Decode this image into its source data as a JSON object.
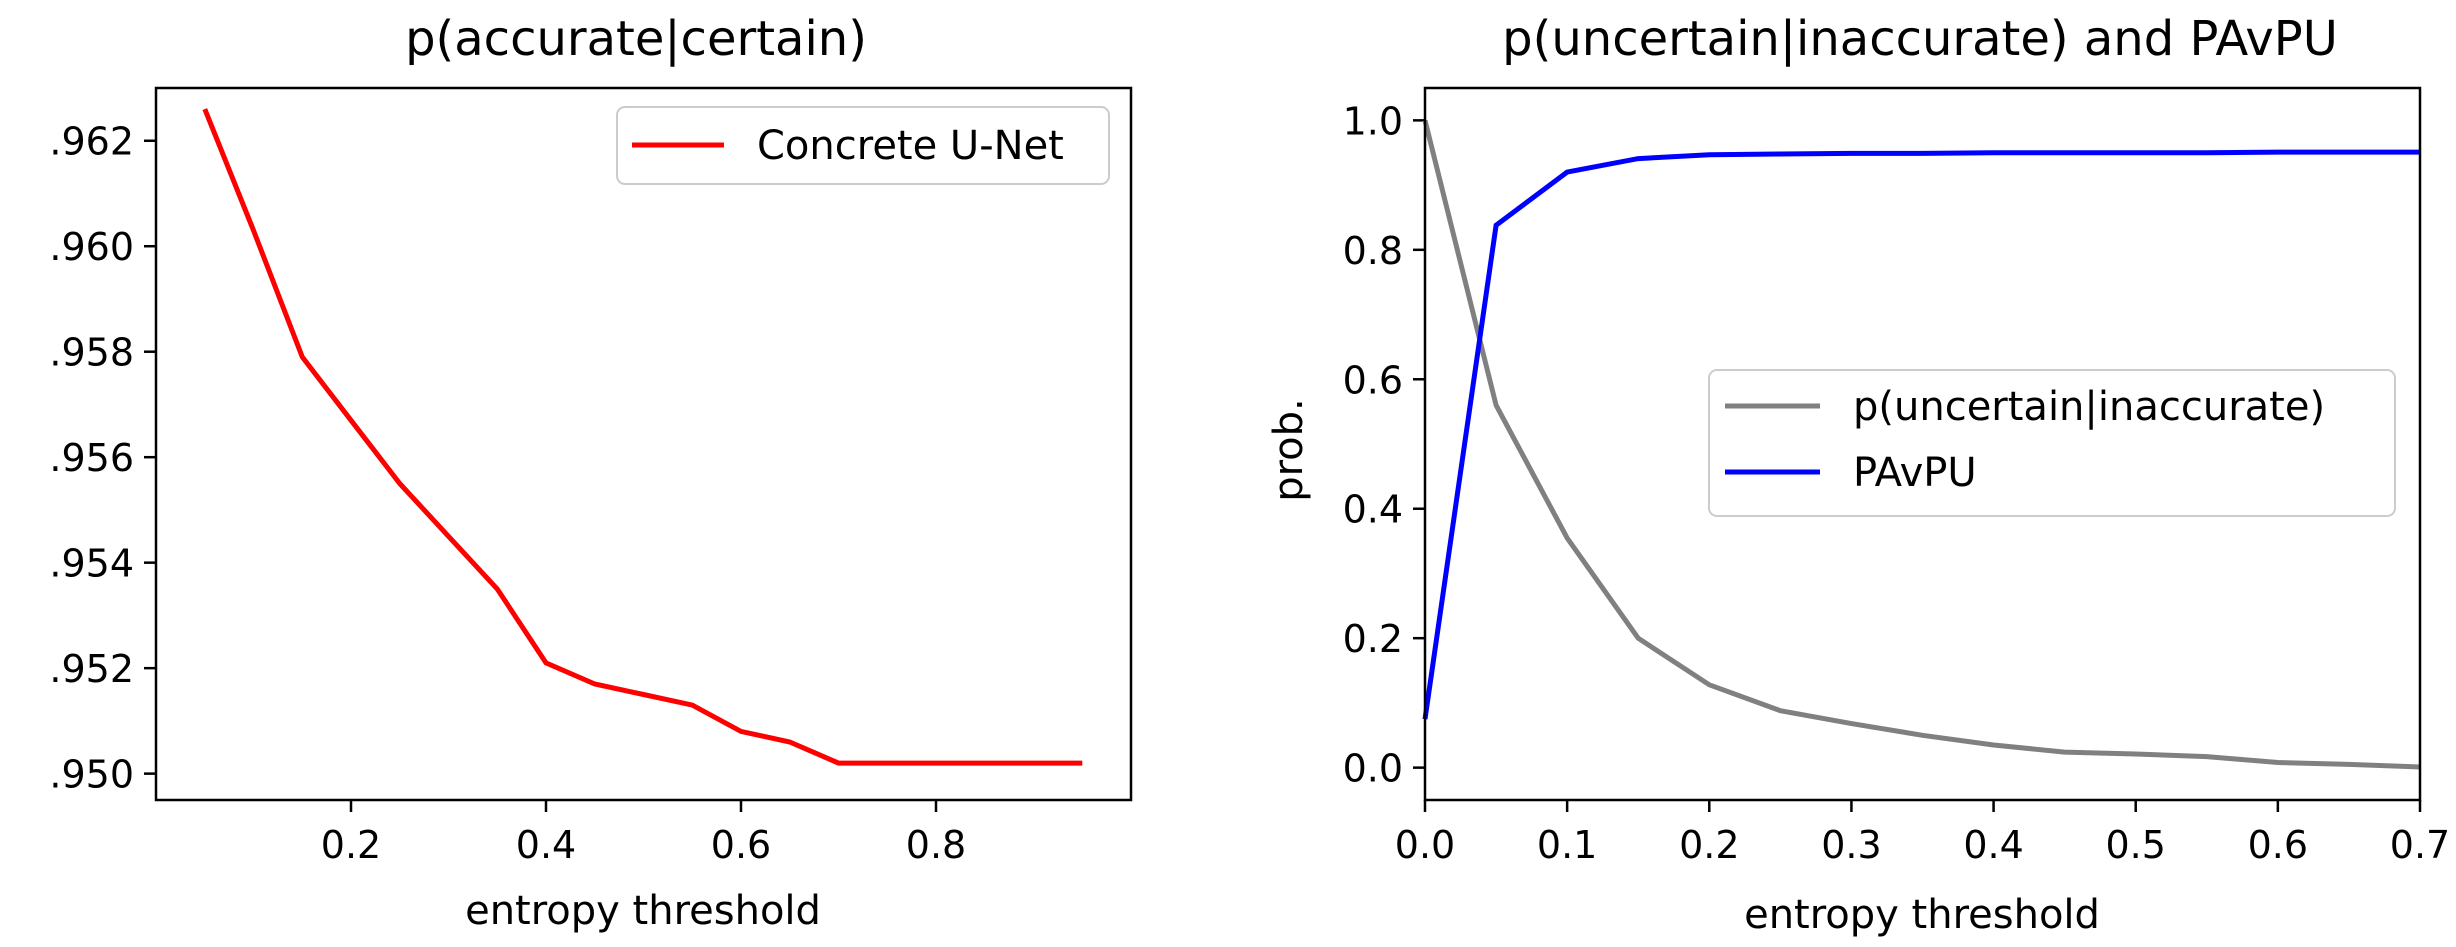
{
  "chart_data": [
    {
      "type": "line",
      "title": "p(accurate|certain)",
      "xlabel": "entropy threshold",
      "ylabel": "",
      "xlim": [
        0.0,
        1.0
      ],
      "ylim": [
        0.9495,
        0.963
      ],
      "xticks": [
        0.2,
        0.4,
        0.6,
        0.8
      ],
      "xtick_labels": [
        "0.2",
        "0.4",
        "0.6",
        "0.8"
      ],
      "yticks": [
        0.95,
        0.952,
        0.954,
        0.956,
        0.958,
        0.96,
        0.962
      ],
      "ytick_labels": [
        ".950",
        ".952",
        ".954",
        ".956",
        ".958",
        ".960",
        ".962"
      ],
      "legend_position": "top-right",
      "grid": false,
      "series": [
        {
          "name": "Concrete U-Net",
          "color": "#ff0000",
          "x": [
            0.05,
            0.1,
            0.15,
            0.2,
            0.25,
            0.3,
            0.35,
            0.4,
            0.45,
            0.5,
            0.55,
            0.6,
            0.65,
            0.7,
            0.75,
            0.8,
            0.85,
            0.9,
            0.95
          ],
          "y": [
            0.9626,
            0.9603,
            0.9579,
            0.9567,
            0.9555,
            0.9545,
            0.9535,
            0.9521,
            0.9517,
            0.9515,
            0.9513,
            0.9508,
            0.9506,
            0.9502,
            0.9502,
            0.9502,
            0.9502,
            0.9502,
            0.9502
          ]
        }
      ]
    },
    {
      "type": "line",
      "title": "p(uncertain|inaccurate) and PAvPU",
      "xlabel": "entropy threshold",
      "ylabel": "prob.",
      "xlim": [
        0.0,
        0.7
      ],
      "ylim": [
        -0.05,
        1.05
      ],
      "xticks": [
        0.0,
        0.1,
        0.2,
        0.3,
        0.4,
        0.5,
        0.6,
        0.7
      ],
      "xtick_labels": [
        "0.0",
        "0.1",
        "0.2",
        "0.3",
        "0.4",
        "0.5",
        "0.6",
        "0.7"
      ],
      "yticks": [
        0.0,
        0.2,
        0.4,
        0.6,
        0.8,
        1.0
      ],
      "ytick_labels": [
        "0.0",
        "0.2",
        "0.4",
        "0.6",
        "0.8",
        "1.0"
      ],
      "legend_position": "center-right",
      "grid": false,
      "series": [
        {
          "name": "p(uncertain|inaccurate)",
          "color": "#808080",
          "x": [
            0.0,
            0.05,
            0.1,
            0.15,
            0.2,
            0.25,
            0.3,
            0.35,
            0.4,
            0.45,
            0.5,
            0.55,
            0.6,
            0.65,
            0.7
          ],
          "y": [
            1.0,
            0.56,
            0.355,
            0.2,
            0.128,
            0.088,
            0.068,
            0.05,
            0.035,
            0.024,
            0.021,
            0.017,
            0.008,
            0.005,
            0.001
          ]
        },
        {
          "name": "PAvPU",
          "color": "#0000ff",
          "x": [
            0.0,
            0.05,
            0.1,
            0.15,
            0.2,
            0.25,
            0.3,
            0.35,
            0.4,
            0.45,
            0.5,
            0.55,
            0.6,
            0.65,
            0.7
          ],
          "y": [
            0.075,
            0.838,
            0.92,
            0.941,
            0.947,
            0.948,
            0.949,
            0.949,
            0.95,
            0.95,
            0.95,
            0.95,
            0.951,
            0.951,
            0.951
          ]
        }
      ]
    }
  ]
}
